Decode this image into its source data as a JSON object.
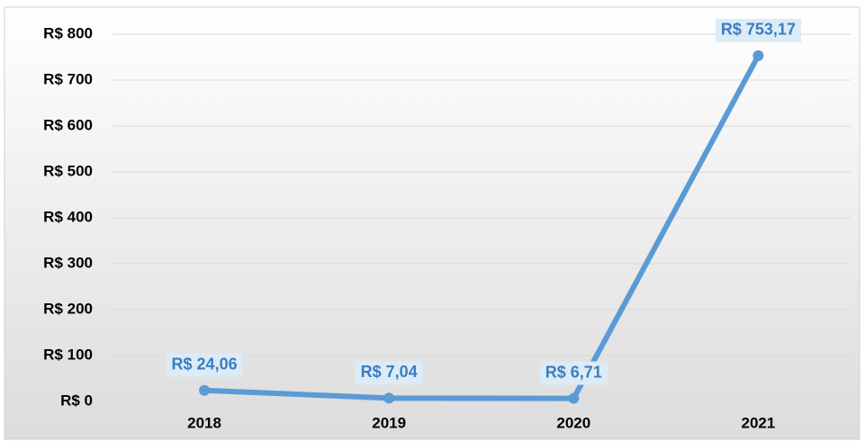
{
  "chart_data": {
    "type": "line",
    "categories": [
      "2018",
      "2019",
      "2020",
      "2021"
    ],
    "series": [
      {
        "color": "#5b9bd5",
        "values": [
          24.06,
          7.04,
          6.71,
          753.17
        ],
        "value_labels": [
          "R$ 24,06",
          "R$ 7,04",
          "R$ 6,71",
          "R$ 753,17"
        ]
      }
    ],
    "ylim": [
      0,
      800
    ],
    "yticks": [
      {
        "value": 0,
        "label": "R$ 0"
      },
      {
        "value": 100,
        "label": "R$ 100"
      },
      {
        "value": 200,
        "label": "R$ 200"
      },
      {
        "value": 300,
        "label": "R$ 300"
      },
      {
        "value": 400,
        "label": "R$ 400"
      },
      {
        "value": 500,
        "label": "R$ 500"
      },
      {
        "value": 600,
        "label": "R$ 600"
      },
      {
        "value": 700,
        "label": "R$ 700"
      },
      {
        "value": 800,
        "label": "R$ 800"
      }
    ],
    "grid": true
  }
}
